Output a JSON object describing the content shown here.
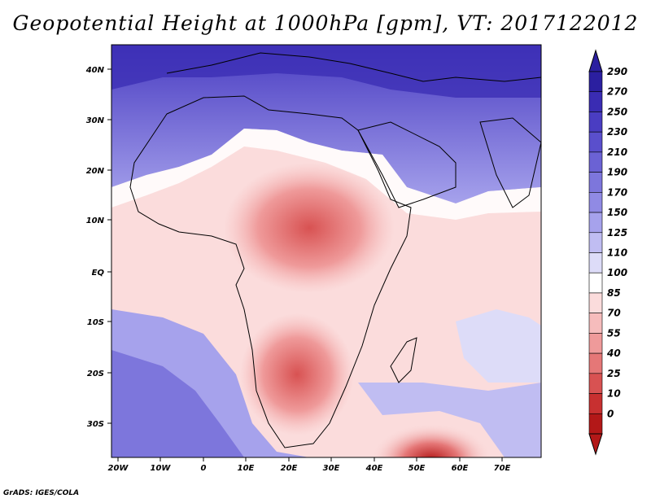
{
  "title": "Geopotential Height at 1000hPa [gpm], VT: 2017122012",
  "credit": "GrADS: IGES/COLA",
  "map": {
    "variable": "Geopotential Height at 1000hPa",
    "units": "gpm",
    "valid_time": "2017122012",
    "lat_labels": [
      "40N",
      "30N",
      "20N",
      "10N",
      "EQ",
      "10S",
      "20S",
      "30S"
    ],
    "lon_labels": [
      "20W",
      "10W",
      "0",
      "10E",
      "20E",
      "30E",
      "40E",
      "50E",
      "60E",
      "70E"
    ]
  },
  "colorbar": {
    "levels": [
      "290",
      "270",
      "250",
      "230",
      "210",
      "190",
      "170",
      "150",
      "125",
      "110",
      "100",
      "85",
      "70",
      "55",
      "40",
      "25",
      "10",
      "0"
    ],
    "colors": [
      "#2b1fa0",
      "#3a2cb3",
      "#4a3dc2",
      "#5a4fcc",
      "#6b62d4",
      "#7d76dc",
      "#908ae4",
      "#a6a2ec",
      "#c0bdf2",
      "#dddcf8",
      "#ffffff",
      "#fbdcdc",
      "#f6bcbc",
      "#ef9a9a",
      "#e57777",
      "#d85252",
      "#c83030",
      "#b31818"
    ]
  },
  "colors": {
    "strong_blue": "#3a2cb3",
    "light_blue": "#c0bdf2",
    "strong_red": "#c83030",
    "light_red": "#fbdcdc"
  }
}
